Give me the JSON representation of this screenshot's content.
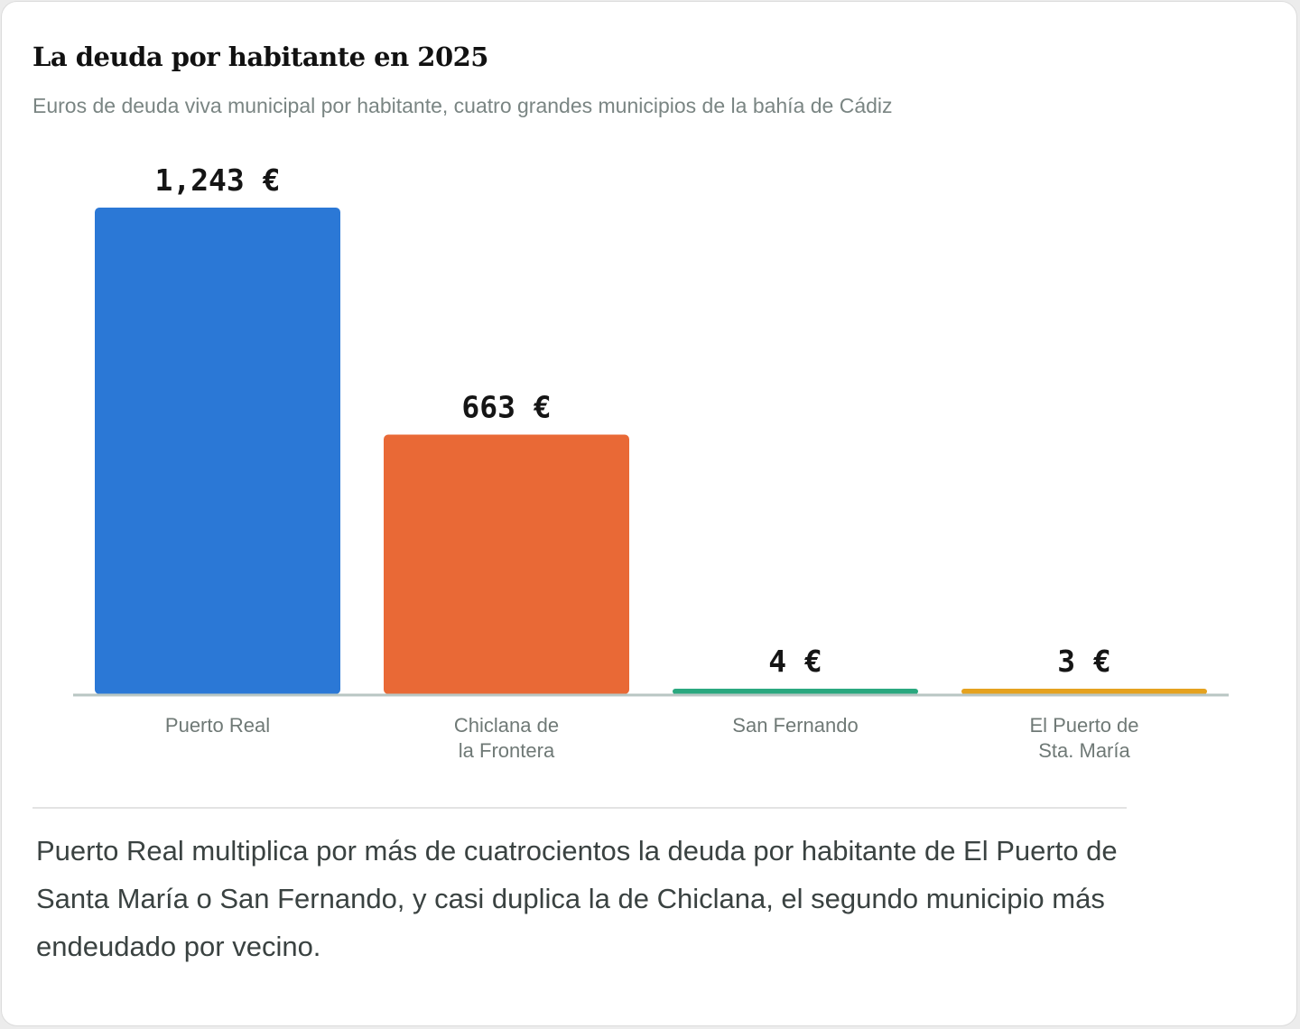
{
  "header": {
    "title": "La deuda por habitante en 2025",
    "subtitle": "Euros de deuda viva municipal por habitante, cuatro grandes municipios de la bahía de Cádiz"
  },
  "chart_data": {
    "type": "bar",
    "categories": [
      [
        "Puerto Real"
      ],
      [
        "Chiclana de",
        "la Frontera"
      ],
      [
        "San Fernando"
      ],
      [
        "El Puerto de",
        "Sta. María"
      ]
    ],
    "values": [
      1243,
      663,
      4,
      3
    ],
    "value_labels": [
      "1,243 €",
      "663 €",
      "4 €",
      "3 €"
    ],
    "colors": [
      "#2b78d6",
      "#e96936",
      "#2aa87f",
      "#e5a21f"
    ],
    "ylim": [
      0,
      1243
    ],
    "title": "La deuda por habitante en 2025",
    "xlabel": "",
    "ylabel": "",
    "grid": false,
    "legend": "none"
  },
  "note": {
    "text": "Puerto Real multiplica por más de cuatrocientos la deuda por habitante de El Puerto de Santa María o San Fernando, y casi duplica la de Chiclana, el segundo municipio más endeudado por vecino."
  }
}
